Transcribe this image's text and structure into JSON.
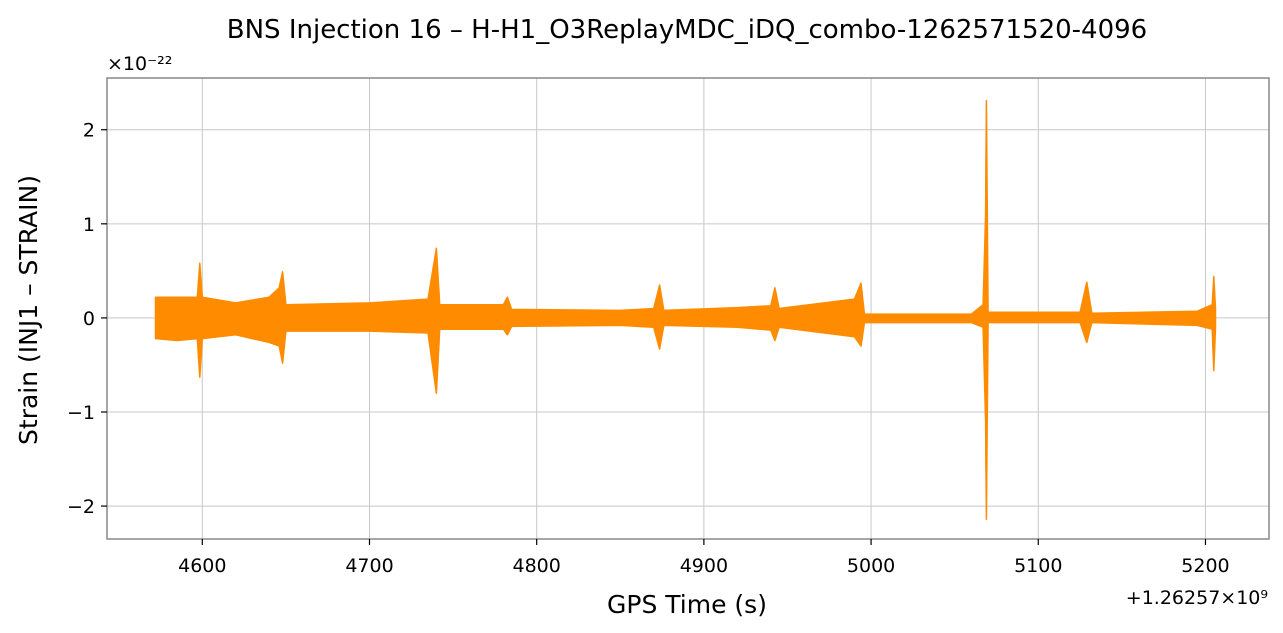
{
  "chart_data": {
    "type": "line",
    "title": "BNS Injection 16 – H-H1_O3ReplayMDC_iDQ_combo-1262571520-4096",
    "xlabel": "GPS Time (s)",
    "ylabel": "Strain (INJ1 – STRAIN)",
    "x_offset_label": "+1.26257×10⁹",
    "y_scale_label": "×10⁻²²",
    "xlim": [
      4543,
      5238
    ],
    "ylim": [
      -2.35,
      2.55
    ],
    "x_ticks": [
      {
        "value": 4600,
        "label": "4600"
      },
      {
        "value": 4700,
        "label": "4700"
      },
      {
        "value": 4800,
        "label": "4800"
      },
      {
        "value": 4900,
        "label": "4900"
      },
      {
        "value": 5000,
        "label": "5000"
      },
      {
        "value": 5100,
        "label": "5100"
      },
      {
        "value": 5200,
        "label": "5200"
      }
    ],
    "y_ticks": [
      {
        "value": 2,
        "label": "2"
      },
      {
        "value": 1,
        "label": "1"
      },
      {
        "value": 0,
        "label": "0"
      },
      {
        "value": -1,
        "label": "−1"
      },
      {
        "value": -2,
        "label": "−2"
      }
    ],
    "grid": true,
    "color": "#ff8c00",
    "series": [
      {
        "envelope": [
          {
            "x": 4572,
            "upper": 0.22,
            "lower": -0.22
          },
          {
            "x": 4585,
            "upper": 0.22,
            "lower": -0.24
          },
          {
            "x": 4597,
            "upper": 0.22,
            "lower": -0.22
          },
          {
            "x": 4598.5,
            "upper": 0.58,
            "lower": -0.63
          },
          {
            "x": 4600,
            "upper": 0.22,
            "lower": -0.22
          },
          {
            "x": 4620,
            "upper": 0.16,
            "lower": -0.18
          },
          {
            "x": 4640,
            "upper": 0.22,
            "lower": -0.26
          },
          {
            "x": 4646,
            "upper": 0.32,
            "lower": -0.3
          },
          {
            "x": 4648,
            "upper": 0.49,
            "lower": -0.48
          },
          {
            "x": 4650,
            "upper": 0.14,
            "lower": -0.14
          },
          {
            "x": 4700,
            "upper": 0.16,
            "lower": -0.14
          },
          {
            "x": 4735,
            "upper": 0.2,
            "lower": -0.16
          },
          {
            "x": 4740,
            "upper": 0.74,
            "lower": -0.8
          },
          {
            "x": 4742,
            "upper": 0.14,
            "lower": -0.12
          },
          {
            "x": 4780,
            "upper": 0.14,
            "lower": -0.12
          },
          {
            "x": 4782.5,
            "upper": 0.22,
            "lower": -0.18
          },
          {
            "x": 4785,
            "upper": 0.09,
            "lower": -0.09
          },
          {
            "x": 4850,
            "upper": 0.08,
            "lower": -0.08
          },
          {
            "x": 4870,
            "upper": 0.1,
            "lower": -0.1
          },
          {
            "x": 4873.5,
            "upper": 0.35,
            "lower": -0.33
          },
          {
            "x": 4876,
            "upper": 0.08,
            "lower": -0.08
          },
          {
            "x": 4920,
            "upper": 0.11,
            "lower": -0.1
          },
          {
            "x": 4940,
            "upper": 0.13,
            "lower": -0.13
          },
          {
            "x": 4942.5,
            "upper": 0.32,
            "lower": -0.24
          },
          {
            "x": 4945,
            "upper": 0.1,
            "lower": -0.1
          },
          {
            "x": 4990,
            "upper": 0.2,
            "lower": -0.2
          },
          {
            "x": 4994,
            "upper": 0.37,
            "lower": -0.3
          },
          {
            "x": 4996,
            "upper": 0.04,
            "lower": -0.05
          },
          {
            "x": 5060,
            "upper": 0.04,
            "lower": -0.05
          },
          {
            "x": 5067,
            "upper": 0.14,
            "lower": -0.1
          },
          {
            "x": 5068.5,
            "upper": 1.1,
            "lower": -1.1
          },
          {
            "x": 5069,
            "upper": 2.31,
            "lower": -2.14
          },
          {
            "x": 5070,
            "upper": 0.06,
            "lower": -0.05
          },
          {
            "x": 5125,
            "upper": 0.06,
            "lower": -0.05
          },
          {
            "x": 5129,
            "upper": 0.38,
            "lower": -0.26
          },
          {
            "x": 5132,
            "upper": 0.05,
            "lower": -0.05
          },
          {
            "x": 5195,
            "upper": 0.07,
            "lower": -0.08
          },
          {
            "x": 5204,
            "upper": 0.14,
            "lower": -0.12
          },
          {
            "x": 5205,
            "upper": 0.44,
            "lower": -0.56
          },
          {
            "x": 5206,
            "upper": 0.1,
            "lower": -0.1
          }
        ]
      }
    ]
  }
}
